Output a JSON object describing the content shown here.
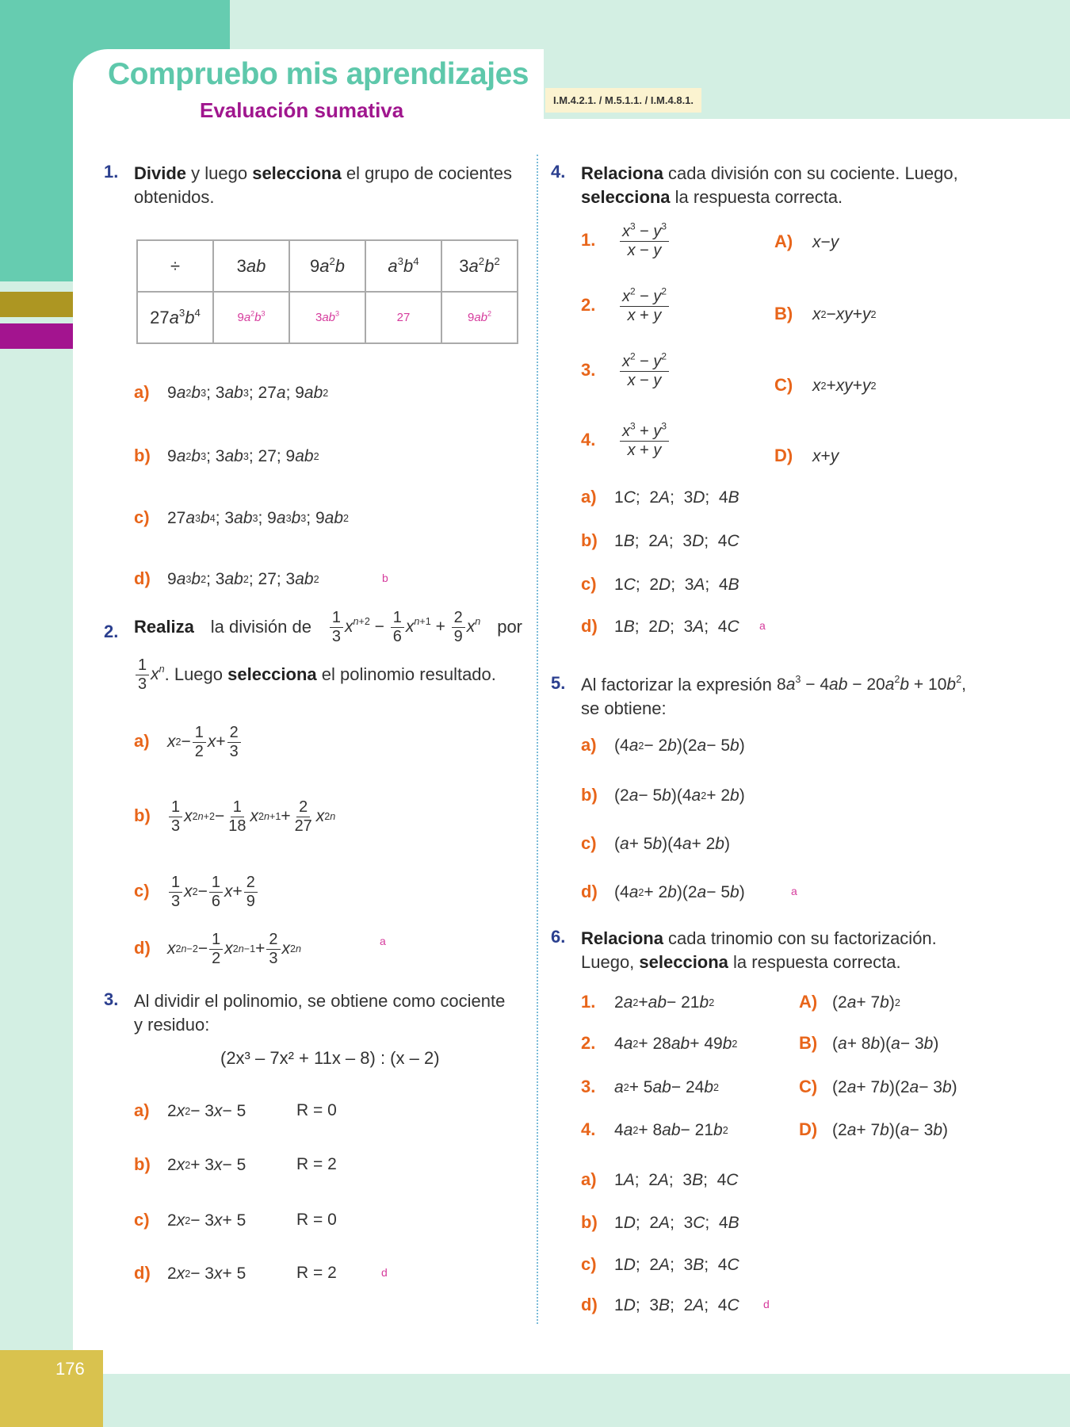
{
  "header": {
    "title": "Compruebo mis aprendizajes",
    "subtitle": "Evaluación sumativa",
    "codes": "I.M.4.2.1. / M.5.1.1. / I.M.4.8.1."
  },
  "page_number": "176",
  "colors": {
    "teal": "#5ec8ab",
    "purple": "#a0168e",
    "number_blue": "#2b3f8f",
    "option_orange": "#e8651a",
    "answer_pink": "#d63c9d"
  },
  "q1": {
    "num": "1.",
    "bold1": "Divide",
    "t1": " y luego ",
    "bold2": "selecciona",
    "t2": " el grupo de cocientes",
    "t3": "obtenidos.",
    "table": {
      "header": [
        "÷",
        "3ab",
        "9a^{2}b",
        "a^{3}b^{4}",
        "3a^{2}b^{2}"
      ],
      "row": [
        "27a^{3}b^{4}",
        "9a^{2}b^{3}",
        "3ab^{3}",
        "27",
        "9ab^{2}"
      ]
    },
    "options": [
      {
        "label": "a)",
        "expr": "9a^{2}b^{3}; 3ab^{3}; 27a; 9ab^{2}"
      },
      {
        "label": "b)",
        "expr": "9a^{2}b^{3}; 3ab^{3}; 27; 9ab^{2}"
      },
      {
        "label": "c)",
        "expr": "27a^{3}b^{4}; 3ab^{3}; 9a^{3}b^{3}; 9ab^{2}"
      },
      {
        "label": "d)",
        "expr": "9a^{3}b^{2}; 3ab^{2}; 27; 3ab^{2}"
      }
    ],
    "answer": "b"
  },
  "q2": {
    "num": "2.",
    "bold1": "Realiza",
    "t1": "la división de",
    "m1": "[1|3]x^{n+2} − [1|6]x^{n+1} + [2|9]x^{n}",
    "t2": "por",
    "m2": "[1|3]x^{n}",
    "t3": ". Luego ",
    "bold2": "selecciona",
    "t4": " el polinomio resultado.",
    "options": [
      {
        "label": "a)",
        "expr": "x^{2} − [1|2]x + [2|3]"
      },
      {
        "label": "b)",
        "expr": "[1|3]x^{2n+2} − [1|18]x^{2n+1} + [2|27]x^{2n}"
      },
      {
        "label": "c)",
        "expr": "[1|3]x^{2} − [1|6]x + [2|9]"
      },
      {
        "label": "d)",
        "expr": "x^{2n−2} − [1|2]x^{2n−1} + [2|3]x^{2n}"
      }
    ],
    "answer": "a"
  },
  "q3": {
    "num": "3.",
    "t1": "Al dividir el polinomio, se obtiene como cociente",
    "t2": "y residuo:",
    "expression": "(2x³ – 7x² + 11x – 8) : (x – 2)",
    "options": [
      {
        "label": "a)",
        "expr": "2x^{2} − 3x − 5",
        "r": "R = 0"
      },
      {
        "label": "b)",
        "expr": "2x^{2} + 3x − 5",
        "r": "R = 2"
      },
      {
        "label": "c)",
        "expr": "2x^{2} − 3x + 5",
        "r": "R = 0"
      },
      {
        "label": "d)",
        "expr": "2x^{2} − 3x + 5",
        "r": "R = 2"
      }
    ],
    "answer": "d"
  },
  "q4": {
    "num": "4.",
    "bold1": "Relaciona",
    "t1": " cada división con su cociente. Luego,",
    "bold2": "selecciona",
    "t2": " la respuesta correcta.",
    "items": [
      {
        "n": "1.",
        "expr": "[x^{3} − y^{3}|x − y]"
      },
      {
        "n": "2.",
        "expr": "[x^{2} − y^{2}|x + y]"
      },
      {
        "n": "3.",
        "expr": "[x^{2} − y^{2}|x − y]"
      },
      {
        "n": "4.",
        "expr": "[x^{3} + y^{3}|x + y]"
      }
    ],
    "results": [
      {
        "l": "A)",
        "expr": "x − y"
      },
      {
        "l": "B)",
        "expr": "x^{2} − xy + y^{2}"
      },
      {
        "l": "C)",
        "expr": "x^{2} + xy + y^{2}"
      },
      {
        "l": "D)",
        "expr": "x + y"
      }
    ],
    "options": [
      {
        "label": "a)",
        "expr": "1C;  2A;  3D;  4B"
      },
      {
        "label": "b)",
        "expr": "1B;  2A;  3D;  4C"
      },
      {
        "label": "c)",
        "expr": "1C;  2D;  3A;  4B"
      },
      {
        "label": "d)",
        "expr": "1B;  2D;  3A;  4C"
      }
    ],
    "answer": "a"
  },
  "q5": {
    "num": "5.",
    "t1": "Al factorizar la expresión ",
    "m1": "8a^{3} − 4ab − 20a^{2}b + 10b^{2},",
    "t2": "se obtiene:",
    "options": [
      {
        "label": "a)",
        "expr": "(4a^{2} − 2b)(2a − 5b)"
      },
      {
        "label": "b)",
        "expr": "(2a − 5b)(4a^{2} + 2b)"
      },
      {
        "label": "c)",
        "expr": "(a + 5b)(4a + 2b)"
      },
      {
        "label": "d)",
        "expr": "(4a^{2} + 2b)(2a − 5b)"
      }
    ],
    "answer": "a"
  },
  "q6": {
    "num": "6.",
    "bold1": "Relaciona",
    "t1": " cada trinomio con su factorización.",
    "t2a": "Luego, ",
    "bold2": "selecciona",
    "t2": " la respuesta correcta.",
    "items": [
      {
        "n": "1.",
        "expr": "2a^{2} + ab − 21b^{2}"
      },
      {
        "n": "2.",
        "expr": "4a^{2} + 28ab + 49b^{2}"
      },
      {
        "n": "3.",
        "expr": "a^{2} + 5ab − 24b^{2}"
      },
      {
        "n": "4.",
        "expr": "4a^{2} + 8ab − 21b^{2}"
      }
    ],
    "results": [
      {
        "l": "A)",
        "expr": "(2a + 7b)^{2}"
      },
      {
        "l": "B)",
        "expr": "(a + 8b)(a − 3b)"
      },
      {
        "l": "C)",
        "expr": "(2a + 7b)(2a − 3b)"
      },
      {
        "l": "D)",
        "expr": "(2a + 7b)(a − 3b)"
      }
    ],
    "options": [
      {
        "label": "a)",
        "expr": "1A;  2A;  3B;  4C"
      },
      {
        "label": "b)",
        "expr": "1D;  2A;  3C;  4B"
      },
      {
        "label": "c)",
        "expr": "1D;  2A;  3B;  4C"
      },
      {
        "label": "d)",
        "expr": "1D;  3B;  2A;  4C"
      }
    ],
    "answer": "d"
  }
}
